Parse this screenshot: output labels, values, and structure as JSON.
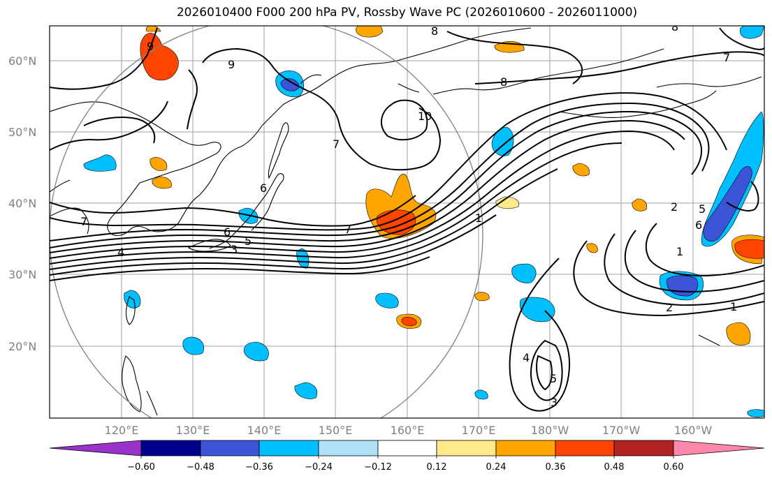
{
  "title": "2026010400 F000 200 hPa PV, Rossby Wave PC (2026010600 - 2026011000)",
  "map": {
    "lat_labels": [
      "60°N",
      "50°N",
      "40°N",
      "30°N",
      "20°N"
    ],
    "lon_labels": [
      "120°E",
      "130°E",
      "140°E",
      "150°E",
      "160°E",
      "170°E",
      "180°W",
      "170°W",
      "160°W"
    ],
    "contour_labels": [
      "9",
      "8",
      "7",
      "9",
      "10",
      "8",
      "7",
      "6",
      "5",
      "4",
      "3",
      "7",
      "1",
      "2",
      "1",
      "2",
      "6",
      "5",
      "1",
      "3",
      "5",
      "4",
      "6",
      "7",
      "8"
    ]
  },
  "colorbar": {
    "ticks": [
      "−0.60",
      "−0.48",
      "−0.36",
      "−0.24",
      "−0.12",
      "0.12",
      "0.24",
      "0.36",
      "0.48",
      "0.60"
    ],
    "colors": [
      "#9933cc",
      "#00008b",
      "#3b55d6",
      "#00bfff",
      "#b0e0f8",
      "#ffffff",
      "#ffe98a",
      "#ffa500",
      "#ff4500",
      "#b22222",
      "#ff88aa"
    ]
  },
  "colors": {
    "negative_fill": "#00bfff",
    "positive_fill": "#ffa500",
    "strong_positive": "#ff4500",
    "strong_negative": "#3b55d6"
  }
}
